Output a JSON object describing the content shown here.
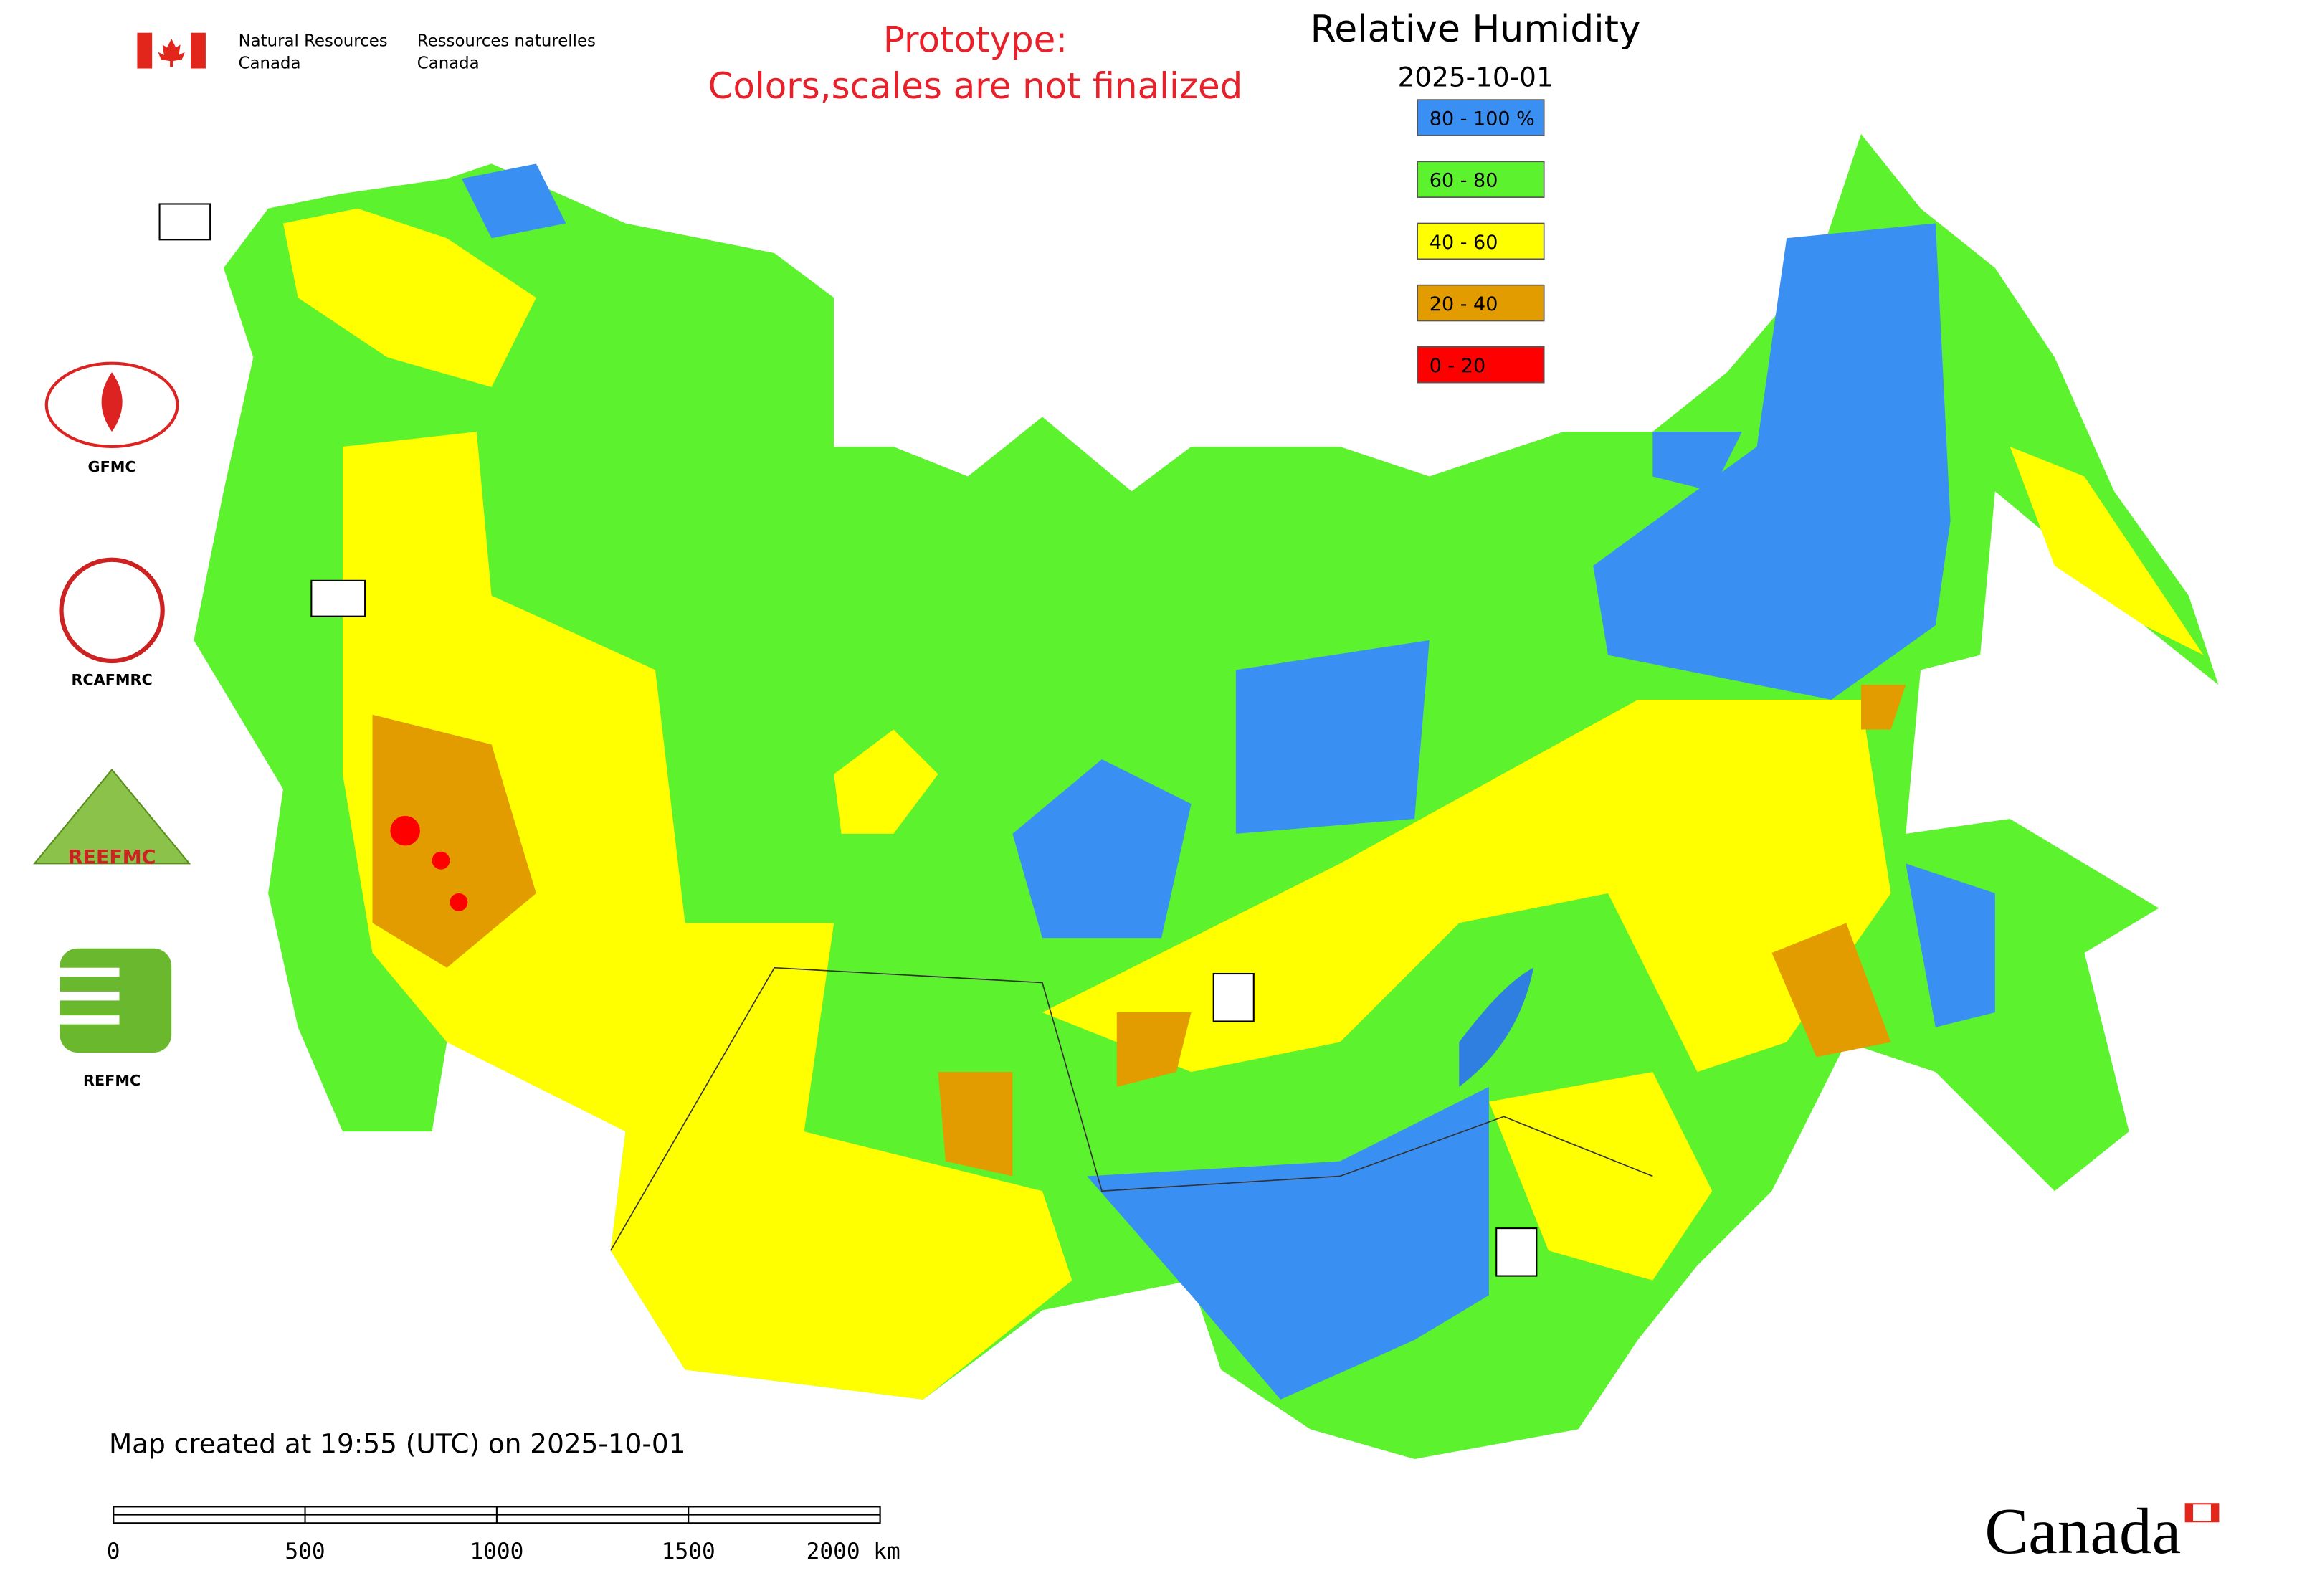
{
  "header": {
    "agency_en": [
      "Natural Resources",
      "Canada"
    ],
    "agency_fr": [
      "Ressources naturelles",
      "Canada"
    ]
  },
  "prototype_note": [
    "Prototype:",
    "Colors,scales are not finalized"
  ],
  "title": "Relative Humidity",
  "date": "2025-10-01",
  "legend": [
    {
      "label": "80 - 100 %",
      "color": "#3a8ff2"
    },
    {
      "label": "60 - 80",
      "color": "#5cf22e"
    },
    {
      "label": "40 - 60",
      "color": "#ffff00"
    },
    {
      "label": "20 - 40",
      "color": "#e39c00"
    },
    {
      "label": "0 - 20",
      "color": "#ff0000"
    }
  ],
  "logos": [
    "GFMC",
    "RCAFMRC",
    "REEFMC",
    "REFMC"
  ],
  "footer": "Map created at 19:55 (UTC) on 2025-10-01",
  "scale_bar": {
    "ticks": [
      0,
      500,
      1000,
      1500,
      {
        "value": 2000,
        "label": "2000 km"
      }
    ]
  },
  "wordmark": "Canada"
}
